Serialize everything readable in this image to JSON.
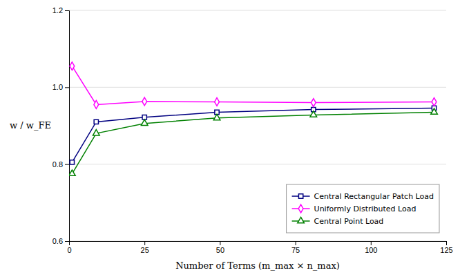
{
  "chart_data": {
    "type": "line",
    "x": [
      1,
      9,
      25,
      49,
      81,
      121
    ],
    "series": [
      {
        "name": "Central Rectangular Patch Load",
        "color": "#000080",
        "marker": "square",
        "values": [
          0.805,
          0.91,
          0.922,
          0.935,
          0.942,
          0.946
        ]
      },
      {
        "name": "Uniformly Distributed Load",
        "color": "#FF00FF",
        "marker": "diamond",
        "values": [
          1.055,
          0.955,
          0.963,
          0.962,
          0.96,
          0.962
        ]
      },
      {
        "name": "Central Point Load",
        "color": "#008000",
        "marker": "triangle",
        "values": [
          0.775,
          0.88,
          0.906,
          0.92,
          0.928,
          0.935
        ]
      }
    ],
    "xlabel": "Number of Terms (m_max × n_max)",
    "ylabel": "w / w_FE",
    "xlim": [
      0,
      125
    ],
    "ylim": [
      0.6,
      1.2
    ],
    "xticks": [
      0,
      25,
      50,
      75,
      100,
      125
    ],
    "yticks": [
      0.6,
      0.8,
      {
        "value": 1.0,
        "label": "1.0"
      },
      1.2
    ],
    "grid": "y",
    "legend": "lower right"
  }
}
